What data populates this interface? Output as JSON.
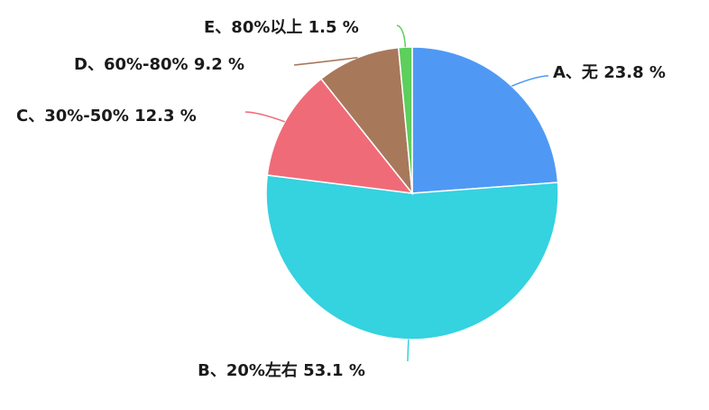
{
  "chart_data": {
    "type": "pie",
    "title": "",
    "categories": [
      "A、无",
      "B、20%左右",
      "C、30%-50%",
      "D、60%-80%",
      "E、80%以上"
    ],
    "values": [
      23.8,
      53.1,
      12.3,
      9.2,
      1.5
    ],
    "unit": "%",
    "labels": [
      "A、无 23.8 %",
      "B、20%左右 53.1 %",
      "C、30%-50% 12.3 %",
      "D、60%-80% 9.2 %",
      "E、80%以上 1.5 %"
    ],
    "colors": [
      "#4f99f5",
      "#35d2e0",
      "#f06b78",
      "#a8785b",
      "#5ccf5c"
    ],
    "start_angle_deg": 0,
    "direction": "clockwise"
  }
}
